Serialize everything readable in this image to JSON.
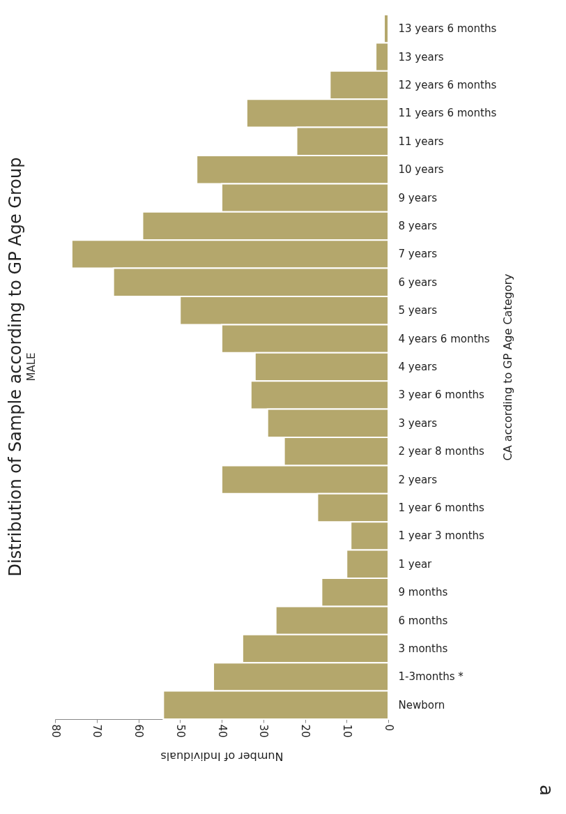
{
  "chart_data": {
    "type": "bar",
    "orientation": "horizontal",
    "title": "Distribution of Sample according to GP Age Group",
    "subtitle": "MALE",
    "xlabel": "Number of Individuals",
    "ylabel": "CA according to GP Age Category",
    "categories": [
      "13 years 6 months",
      "13 years",
      "12 years 6  months",
      "11 years 6 months",
      "11 years",
      "10 years",
      "9 years",
      "8 years",
      "7 years",
      "6 years",
      "5 years",
      "4 years 6 months",
      "4 years",
      "3 year 6 months",
      "3 years",
      "2 year 8 months",
      "2 years",
      "1 year 6 months",
      "1 year 3 months",
      "1 year",
      "9 months",
      "6 months",
      "3 months",
      "1-3months *",
      "Newborn"
    ],
    "values": [
      1,
      3,
      14,
      34,
      22,
      46,
      40,
      59,
      76,
      66,
      50,
      40,
      32,
      33,
      29,
      25,
      40,
      17,
      9,
      10,
      16,
      27,
      35,
      42,
      54
    ],
    "color": "#b4a76c",
    "xlim": [
      80,
      0
    ],
    "xticks": [
      80,
      70,
      60,
      50,
      40,
      30,
      20,
      10,
      0
    ],
    "grid": false,
    "annotations": [
      "a"
    ]
  }
}
